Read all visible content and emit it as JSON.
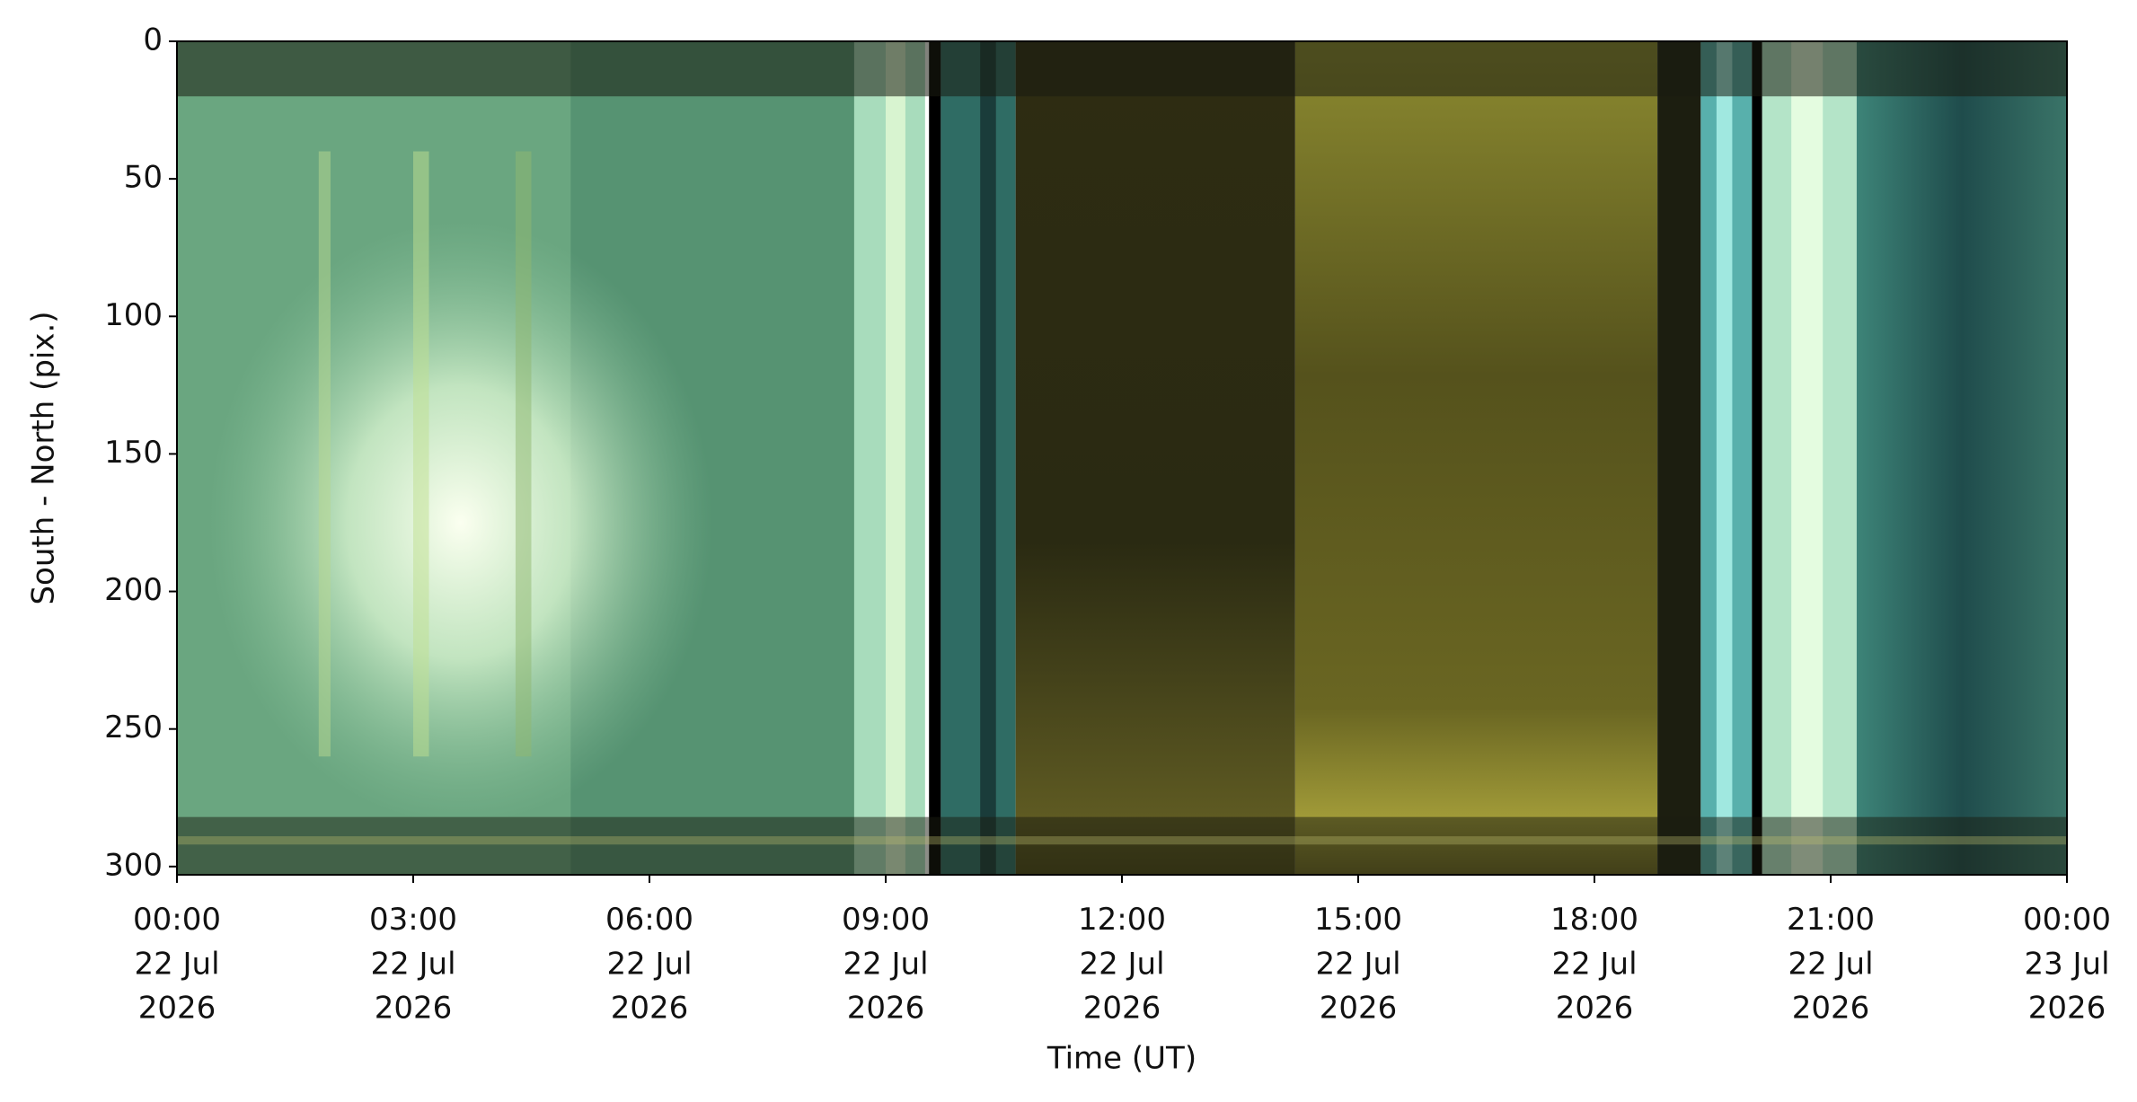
{
  "chart_data": {
    "type": "image",
    "xlabel": "Time (UT)",
    "ylabel": "South - North (pix.)",
    "xlim": [
      "2026-07-22 00:00",
      "2026-07-23 00:00"
    ],
    "ylim": [
      303,
      0
    ],
    "yticks": [
      0,
      50,
      100,
      150,
      200,
      250,
      300
    ],
    "xticks": [
      {
        "value": "2026-07-22 00:00",
        "label": "00:00\n22 Jul\n2026"
      },
      {
        "value": "2026-07-22 03:00",
        "label": "03:00\n22 Jul\n2026"
      },
      {
        "value": "2026-07-22 06:00",
        "label": "06:00\n22 Jul\n2026"
      },
      {
        "value": "2026-07-22 09:00",
        "label": "09:00\n22 Jul\n2026"
      },
      {
        "value": "2026-07-22 12:00",
        "label": "12:00\n22 Jul\n2026"
      },
      {
        "value": "2026-07-22 15:00",
        "label": "15:00\n22 Jul\n2026"
      },
      {
        "value": "2026-07-22 18:00",
        "label": "18:00\n22 Jul\n2026"
      },
      {
        "value": "2026-07-22 21:00",
        "label": "21:00\n22 Jul\n2026"
      },
      {
        "value": "2026-07-23 00:00",
        "label": "00:00\n23 Jul\n2026"
      }
    ]
  }
}
